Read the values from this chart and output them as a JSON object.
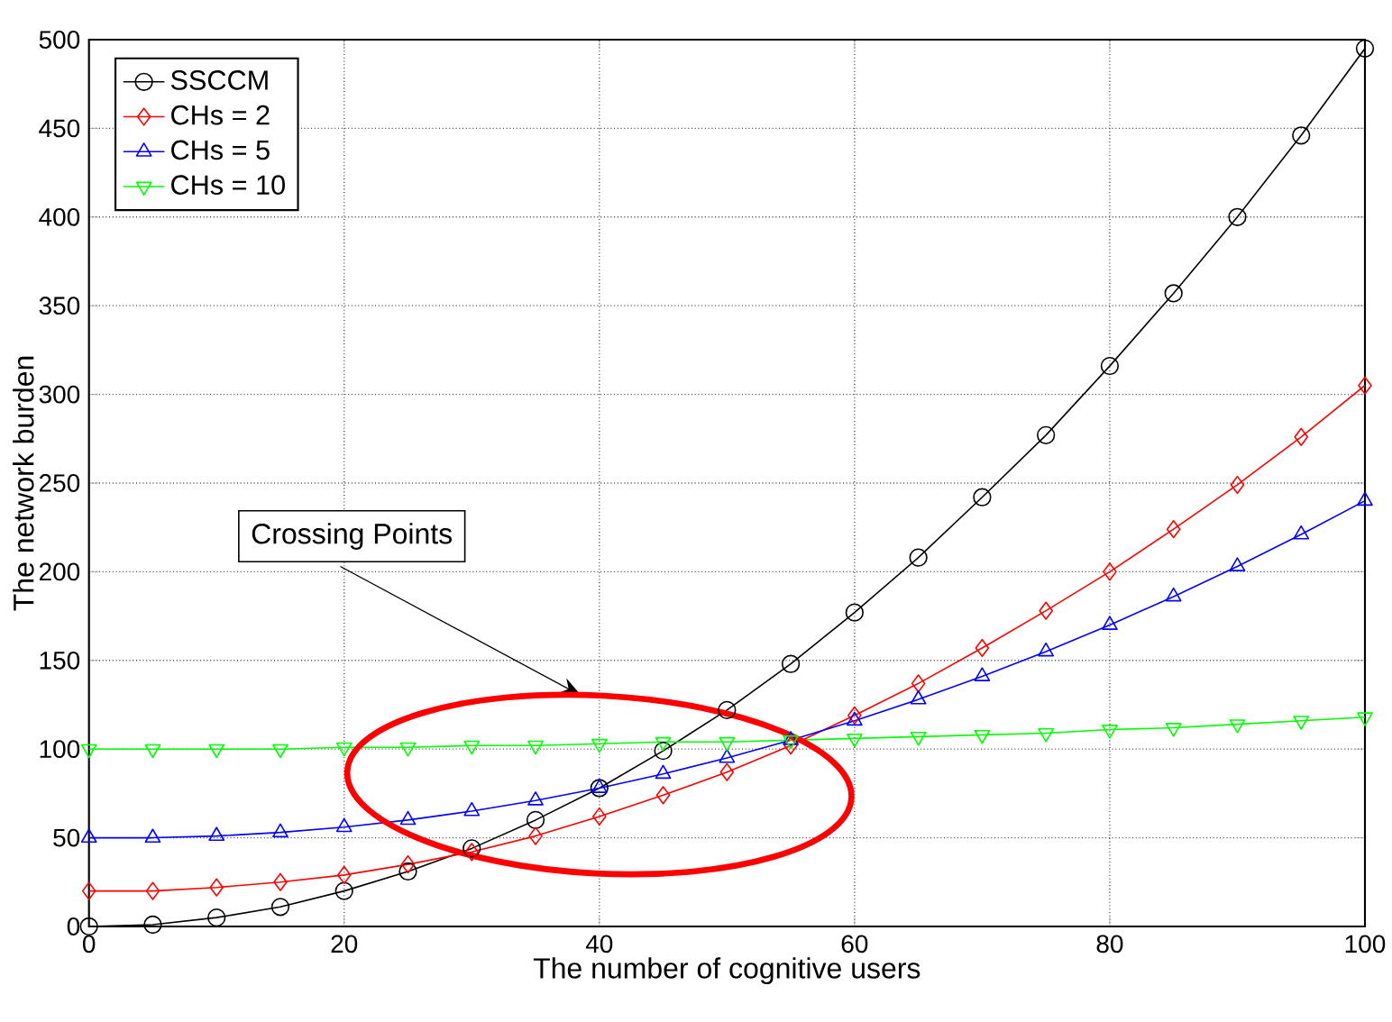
{
  "chart_data": {
    "type": "line",
    "xlabel": "The number of cognitive users",
    "ylabel": "The network burden",
    "x": [
      0,
      5,
      10,
      15,
      20,
      25,
      30,
      35,
      40,
      45,
      50,
      55,
      60,
      65,
      70,
      75,
      80,
      85,
      90,
      95,
      100
    ],
    "series": [
      {
        "name": "SSCCM",
        "color": "#000000",
        "marker": "circle",
        "values": [
          0,
          1,
          5,
          11,
          20,
          31,
          44,
          60,
          78,
          99,
          122,
          148,
          177,
          208,
          242,
          277,
          316,
          357,
          400,
          446,
          495
        ]
      },
      {
        "name": "CHs = 2",
        "color": "#ff0000",
        "marker": "diamond",
        "values": [
          20,
          20,
          22,
          25,
          29,
          35,
          42,
          51,
          62,
          74,
          87,
          102,
          119,
          137,
          157,
          178,
          200,
          224,
          249,
          276,
          305
        ]
      },
      {
        "name": "CHs = 5",
        "color": "#0000ff",
        "marker": "triangle",
        "values": [
          50,
          50,
          51,
          53,
          56,
          60,
          65,
          71,
          78,
          86,
          95,
          105,
          116,
          128,
          141,
          155,
          170,
          186,
          203,
          221,
          240
        ]
      },
      {
        "name": "CHs = 10",
        "color": "#00ff00",
        "marker": "triangle",
        "values": [
          100,
          100,
          100,
          100,
          101,
          101,
          102,
          102,
          103,
          104,
          104,
          105,
          106,
          107,
          108,
          109,
          111,
          112,
          114,
          116,
          118
        ]
      }
    ],
    "xlim": [
      0,
      100
    ],
    "ylim": [
      0,
      500
    ],
    "xticks": [
      0,
      20,
      40,
      60,
      80,
      100
    ],
    "yticks": [
      0,
      50,
      100,
      150,
      200,
      250,
      300,
      350,
      400,
      450,
      500
    ],
    "grid": true,
    "legend": "top left",
    "line_style": "solid",
    "annotations": [
      "Crossing Points"
    ]
  }
}
